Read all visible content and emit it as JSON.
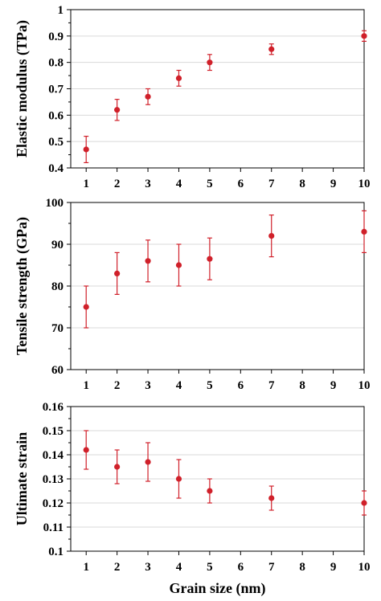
{
  "chart_data": [
    {
      "type": "scatter",
      "ylabel": "Elastic modulus (TPa)",
      "xlim": [
        0.5,
        10
      ],
      "ylim": [
        0.4,
        1
      ],
      "yticks": [
        "0.4",
        "0.5",
        "0.6",
        "0.7",
        "0.8",
        "0.9",
        "1"
      ],
      "xticks": [
        "1",
        "2",
        "3",
        "4",
        "5",
        "6",
        "7",
        "8",
        "9",
        "10"
      ],
      "grid": true,
      "series": [
        {
          "x": [
            1,
            2,
            3,
            4,
            5,
            7,
            10
          ],
          "y": [
            0.47,
            0.62,
            0.67,
            0.74,
            0.8,
            0.85,
            0.9
          ],
          "err": [
            0.05,
            0.04,
            0.03,
            0.03,
            0.03,
            0.02,
            0.02
          ],
          "color": "#d0202a"
        }
      ]
    },
    {
      "type": "scatter",
      "ylabel": "Tensile strength (GPa)",
      "xlim": [
        0.5,
        10
      ],
      "ylim": [
        60,
        100
      ],
      "yticks": [
        "60",
        "70",
        "80",
        "90",
        "100"
      ],
      "xticks": [
        "1",
        "2",
        "3",
        "4",
        "5",
        "6",
        "7",
        "8",
        "9",
        "10"
      ],
      "grid": true,
      "series": [
        {
          "x": [
            1,
            2,
            3,
            4,
            5,
            7,
            10
          ],
          "y": [
            75,
            83,
            86,
            85,
            86.5,
            92,
            93
          ],
          "err": [
            5,
            5,
            5,
            5,
            5,
            5,
            5
          ],
          "color": "#d0202a"
        }
      ]
    },
    {
      "type": "scatter",
      "ylabel": "Ultimate strain",
      "xlabel": "Grain size (nm)",
      "xlim": [
        0.5,
        10
      ],
      "ylim": [
        0.1,
        0.16
      ],
      "yticks": [
        "0.1",
        "0.11",
        "0.12",
        "0.13",
        "0.14",
        "0.15",
        "0.16"
      ],
      "xticks": [
        "1",
        "2",
        "3",
        "4",
        "5",
        "6",
        "7",
        "8",
        "9",
        "10"
      ],
      "grid": true,
      "series": [
        {
          "x": [
            1,
            2,
            3,
            4,
            5,
            7,
            10
          ],
          "y": [
            0.142,
            0.135,
            0.137,
            0.13,
            0.125,
            0.122,
            0.12
          ],
          "err": [
            0.008,
            0.007,
            0.008,
            0.008,
            0.005,
            0.005,
            0.005
          ],
          "color": "#d0202a"
        }
      ]
    }
  ]
}
